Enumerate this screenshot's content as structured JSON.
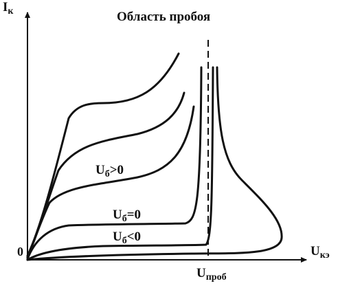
{
  "diagram": {
    "title": "Область пробоя",
    "y_axis": {
      "label_main": "I",
      "label_sub": "к"
    },
    "x_axis": {
      "label_main": "U",
      "label_sub": "кэ"
    },
    "origin_label": "0",
    "breakdown": {
      "label_main": "U",
      "label_sub": "проб"
    },
    "curve_labels": [
      {
        "main": "U",
        "sub": "б",
        "rel": ">0"
      },
      {
        "main": "U",
        "sub": "б",
        "rel": "=0"
      },
      {
        "main": "U",
        "sub": "б",
        "rel": "<0"
      }
    ]
  }
}
